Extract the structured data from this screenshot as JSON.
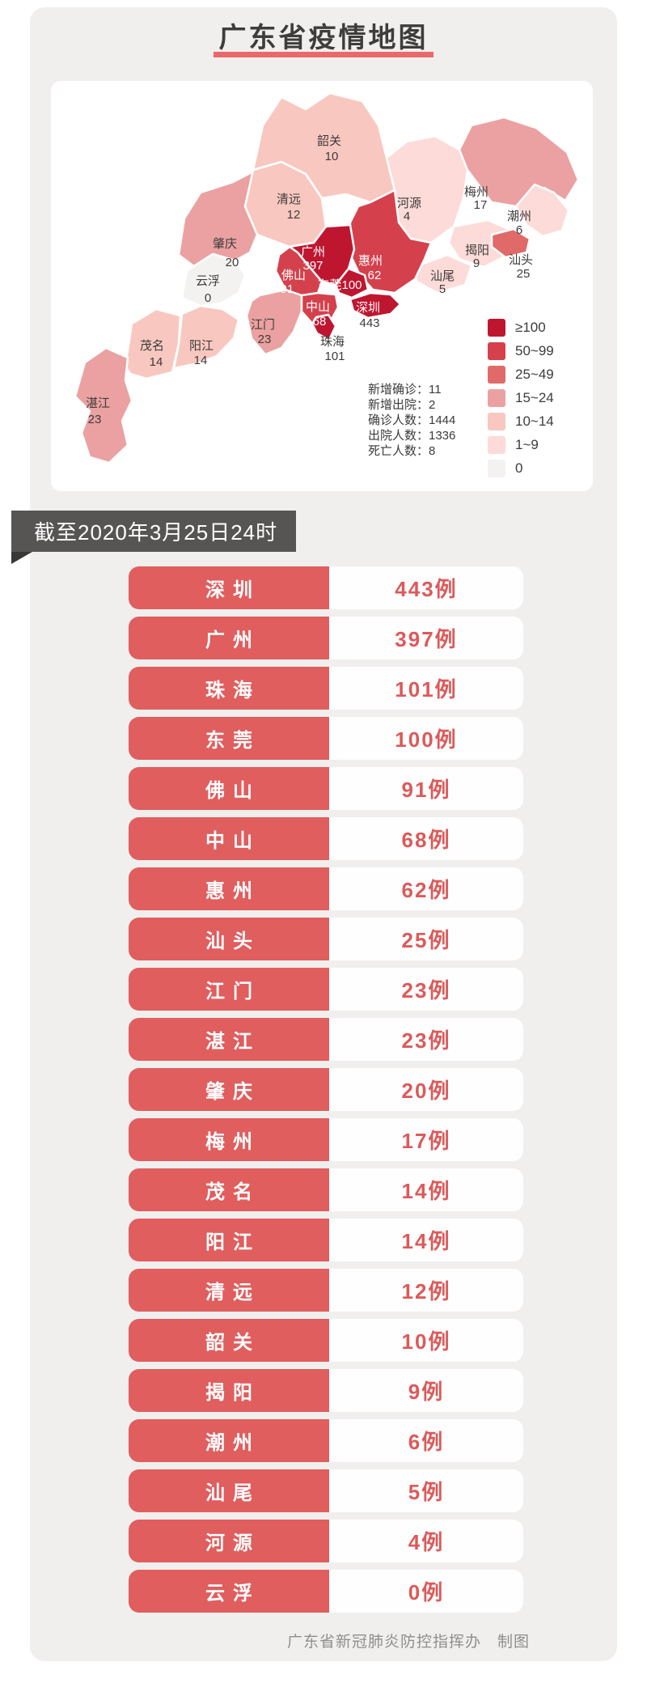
{
  "title": "广东省疫情地图",
  "as_of": "截至2020年3月25日24时",
  "footer": "广东省新冠肺炎防控指挥办　制图",
  "colors": {
    "panel_bg": "#f1efee",
    "title_underline": "#e9696b",
    "banner_bg": "#575454",
    "row_pill_red": "#e05e5e",
    "row_value_red": "#dc5a5a"
  },
  "map": {
    "legend": [
      {
        "label": "≥100",
        "color": "#bf1630"
      },
      {
        "label": "50~99",
        "color": "#d4414c"
      },
      {
        "label": "25~49",
        "color": "#e06a6a"
      },
      {
        "label": "15~24",
        "color": "#eba1a1"
      },
      {
        "label": "10~14",
        "color": "#f8c8c0"
      },
      {
        "label": "1~9",
        "color": "#fcdbd8"
      },
      {
        "label": "0",
        "color": "#f4f2f1"
      }
    ],
    "stats": [
      "新增确诊：11",
      "新增出院：2",
      "确诊人数：1444",
      "出院人数：1336",
      "死亡人数：8"
    ],
    "regions": [
      {
        "key": "zhaoqing",
        "name": "肇庆",
        "cases": "20",
        "level": 3
      },
      {
        "key": "qingyuan",
        "name": "清远",
        "cases": "12",
        "level": 4
      },
      {
        "key": "shaoguan",
        "name": "韶关",
        "cases": "10",
        "level": 4
      },
      {
        "key": "heyuan",
        "name": "河源",
        "cases": "4",
        "level": 5
      },
      {
        "key": "meizhou",
        "name": "梅州",
        "cases": "17",
        "level": 3
      },
      {
        "key": "chaozhou",
        "name": "潮州",
        "cases": "6",
        "level": 5
      },
      {
        "key": "jieyang",
        "name": "揭阳",
        "cases": "9",
        "level": 5
      },
      {
        "key": "shanwei",
        "name": "汕尾",
        "cases": "5",
        "level": 5
      },
      {
        "key": "huizhou",
        "name": "惠州",
        "cases": "62",
        "level": 1
      },
      {
        "key": "yunfu",
        "name": "云浮",
        "cases": "0",
        "level": 6
      },
      {
        "key": "guangzhou",
        "name": "广州",
        "cases": "397",
        "level": 0
      },
      {
        "key": "foshan",
        "name": "佛山",
        "cases": "91",
        "level": 1
      },
      {
        "key": "jiangmen",
        "name": "江门",
        "cases": "23",
        "level": 3
      },
      {
        "key": "maoming",
        "name": "茂名",
        "cases": "14",
        "level": 4
      },
      {
        "key": "yangjiang",
        "name": "阳江",
        "cases": "14",
        "level": 4
      },
      {
        "key": "zhanjiang",
        "name": "湛江",
        "cases": "23",
        "level": 3
      },
      {
        "key": "zhongshan",
        "name": "中山",
        "cases": "68",
        "level": 1
      },
      {
        "key": "dongguan",
        "name": "东莞",
        "cases": "100",
        "level": 0
      },
      {
        "key": "shenzhen",
        "name": "深圳",
        "cases": "443",
        "level": 0
      },
      {
        "key": "zhuhai",
        "name": "珠海",
        "cases": "101",
        "level": 0
      },
      {
        "key": "shantou",
        "name": "汕头",
        "cases": "25",
        "level": 2
      }
    ]
  },
  "table": {
    "rows": [
      {
        "city": "深圳",
        "value": "443例"
      },
      {
        "city": "广州",
        "value": "397例"
      },
      {
        "city": "珠海",
        "value": "101例"
      },
      {
        "city": "东莞",
        "value": "100例"
      },
      {
        "city": "佛山",
        "value": "91例"
      },
      {
        "city": "中山",
        "value": "68例"
      },
      {
        "city": "惠州",
        "value": "62例"
      },
      {
        "city": "汕头",
        "value": "25例"
      },
      {
        "city": "江门",
        "value": "23例"
      },
      {
        "city": "湛江",
        "value": "23例"
      },
      {
        "city": "肇庆",
        "value": "20例"
      },
      {
        "city": "梅州",
        "value": "17例"
      },
      {
        "city": "茂名",
        "value": "14例"
      },
      {
        "city": "阳江",
        "value": "14例"
      },
      {
        "city": "清远",
        "value": "12例"
      },
      {
        "city": "韶关",
        "value": "10例"
      },
      {
        "city": "揭阳",
        "value": "9例"
      },
      {
        "city": "潮州",
        "value": "6例"
      },
      {
        "city": "汕尾",
        "value": "5例"
      },
      {
        "city": "河源",
        "value": "4例"
      },
      {
        "city": "云浮",
        "value": "0例"
      }
    ]
  }
}
